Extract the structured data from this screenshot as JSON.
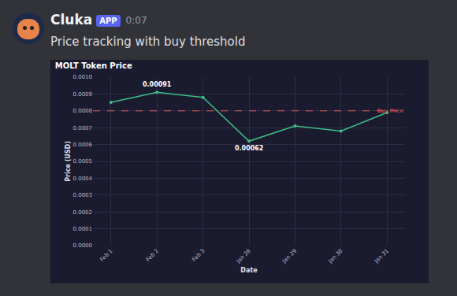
{
  "message": {
    "author": "Cluka",
    "badge": "APP",
    "time": "0:07",
    "text": "Price tracking with buy threshold"
  },
  "chart_data": {
    "type": "line",
    "title": "MOLT Token Price",
    "x_label": "Date",
    "y_label": "Price (USD)",
    "categories": [
      "Feb 1",
      "Feb 2",
      "Feb 3",
      "Jan 28",
      "Jan 29",
      "Jan 30",
      "Jan 31"
    ],
    "values": [
      0.00085,
      0.00091,
      0.00088,
      0.00062,
      0.00071,
      0.00068,
      0.00079
    ],
    "color": "#3dbf85",
    "marker": "circle",
    "ylim": [
      0,
      0.001
    ],
    "yticks": [
      {
        "value": 0,
        "label": "0.0000"
      },
      {
        "value": 0.0001,
        "label": "0.0001"
      },
      {
        "value": 0.0002,
        "label": "0.0002"
      },
      {
        "value": 0.0003,
        "label": "0.0003"
      },
      {
        "value": 0.0004,
        "label": "0.0004"
      },
      {
        "value": 0.0005,
        "label": "0.0005"
      },
      {
        "value": 0.0006,
        "label": "0.0006"
      },
      {
        "value": 0.0007,
        "label": "0.0007"
      },
      {
        "value": 0.0008,
        "label": "0.0008"
      },
      {
        "value": 0.0009,
        "label": "0.0009"
      },
      {
        "value": 0.001,
        "label": "0.0010"
      }
    ],
    "grid": true,
    "threshold": {
      "value": 0.0008,
      "label": "Buy Price",
      "color": "#e05a5a",
      "line_style": "dashed"
    },
    "annotations": [
      {
        "text": "0.00091",
        "x": "Feb 2",
        "y": 0.00091,
        "position": "above"
      },
      {
        "text": "0.00062",
        "x": "Jan 28",
        "y": 0.00062,
        "position": "below"
      }
    ]
  }
}
